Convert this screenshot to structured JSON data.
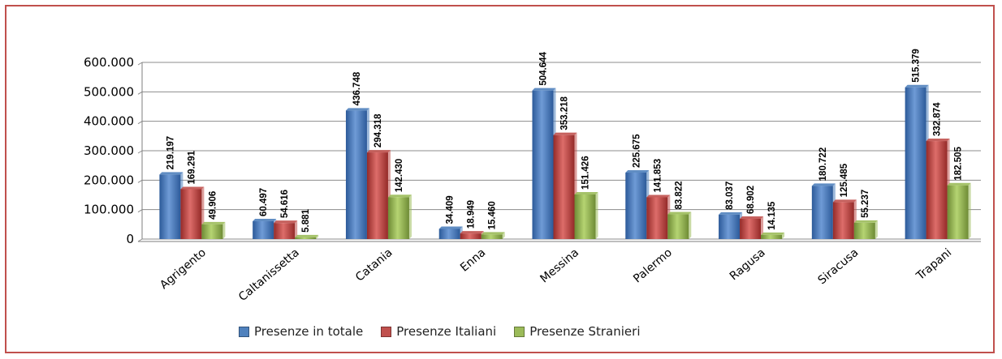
{
  "chart_data": {
    "type": "bar",
    "categories": [
      "Agrigento",
      "Caltanissetta",
      "Catania",
      "Enna",
      "Messina",
      "Palermo",
      "Ragusa",
      "Siracusa",
      "Trapani"
    ],
    "series": [
      {
        "name": "Presenze in totale",
        "color": "#4f81bd",
        "values": [
          219197,
          60497,
          436748,
          34409,
          504644,
          225675,
          83037,
          180722,
          515379
        ],
        "labels": [
          "219.197",
          "60.497",
          "436.748",
          "34.409",
          "504.644",
          "225.675",
          "83.037",
          "180.722",
          "515.379"
        ]
      },
      {
        "name": "Presenze Italiani",
        "color": "#c0504d",
        "values": [
          169291,
          54616,
          294318,
          18949,
          353218,
          141853,
          68902,
          125485,
          332874
        ],
        "labels": [
          "169.291",
          "54.616",
          "294.318",
          "18.949",
          "353.218",
          "141.853",
          "68.902",
          "125.485",
          "332.874"
        ]
      },
      {
        "name": "Presenze Stranieri",
        "color": "#9bbb59",
        "values": [
          49906,
          5881,
          142430,
          15460,
          151426,
          83822,
          14135,
          55237,
          182505
        ],
        "labels": [
          "49.906",
          "5.881",
          "142.430",
          "15.460",
          "151.426",
          "83.822",
          "14.135",
          "55.237",
          "182.505"
        ]
      }
    ],
    "yticks": [
      {
        "value": 0,
        "label": "0"
      },
      {
        "value": 100000,
        "label": "100.000"
      },
      {
        "value": 200000,
        "label": "200.000"
      },
      {
        "value": 300000,
        "label": "300.000"
      },
      {
        "value": 400000,
        "label": "400.000"
      },
      {
        "value": 500000,
        "label": "500.000"
      },
      {
        "value": 600000,
        "label": "600.000"
      }
    ],
    "ylim": [
      0,
      600000
    ],
    "grid": true,
    "legend_position": "bottom"
  }
}
